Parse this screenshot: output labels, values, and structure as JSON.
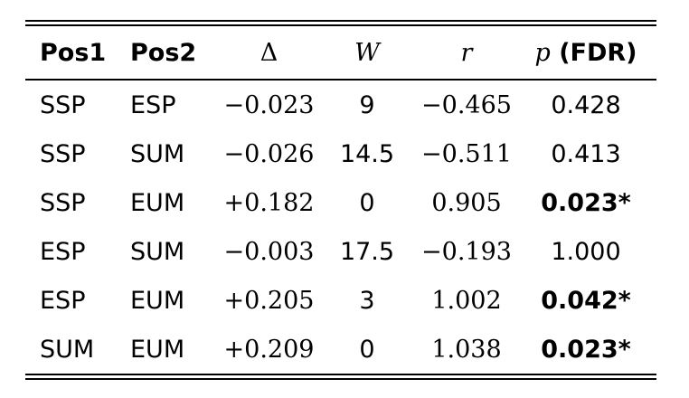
{
  "table": {
    "header": [
      "Pos1",
      "Pos2",
      "Δ",
      "W",
      "r",
      {
        "symbol": "p",
        "suffix": "(FDR)"
      }
    ],
    "rows": [
      {
        "cells": [
          "SSP",
          "ESP",
          "−0.023",
          "9",
          "−0.465",
          "0.428"
        ],
        "p_bold": false
      },
      {
        "cells": [
          "SSP",
          "SUM",
          "−0.026",
          "14.5",
          "−0.511",
          "0.413"
        ],
        "p_bold": false
      },
      {
        "cells": [
          "SSP",
          "EUM",
          "+0.182",
          "0",
          "0.905",
          "0.023*"
        ],
        "p_bold": true
      },
      {
        "cells": [
          "ESP",
          "SUM",
          "−0.003",
          "17.5",
          "−0.193",
          "1.000"
        ],
        "p_bold": false
      },
      {
        "cells": [
          "ESP",
          "EUM",
          "+0.205",
          "3",
          "1.002",
          "0.042*"
        ],
        "p_bold": true
      },
      {
        "cells": [
          "SUM",
          "EUM",
          "+0.209",
          "0",
          "1.038",
          "0.023*"
        ],
        "p_bold": true
      }
    ]
  }
}
